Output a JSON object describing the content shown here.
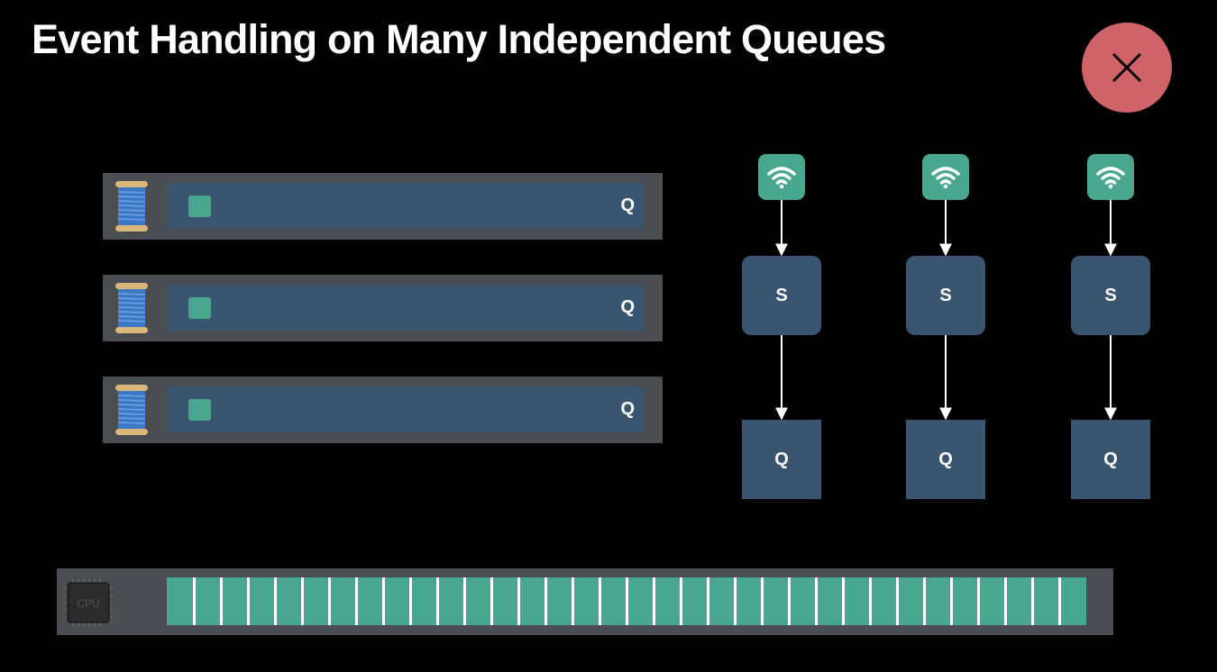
{
  "slide": {
    "title": "Event Handling on Many Independent Queues"
  },
  "colors": {
    "background": "#000000",
    "row_background": "#4a4d51",
    "queue_blue": "#3a5570",
    "accent_green": "#4aa78f",
    "close_red": "#d0636a"
  },
  "threads": [
    {
      "queue_label": "Q",
      "icon": "thread-spool-icon"
    },
    {
      "queue_label": "Q",
      "icon": "thread-spool-icon"
    },
    {
      "queue_label": "Q",
      "icon": "thread-spool-icon"
    }
  ],
  "event_sources": [
    {
      "icon": "wifi-icon",
      "source_label": "S",
      "target_label": "Q"
    },
    {
      "icon": "wifi-icon",
      "source_label": "S",
      "target_label": "Q"
    },
    {
      "icon": "wifi-icon",
      "source_label": "S",
      "target_label": "Q"
    }
  ],
  "cpu": {
    "chip_label": "CPU",
    "core_count": 34
  },
  "close_icon": "close-icon"
}
